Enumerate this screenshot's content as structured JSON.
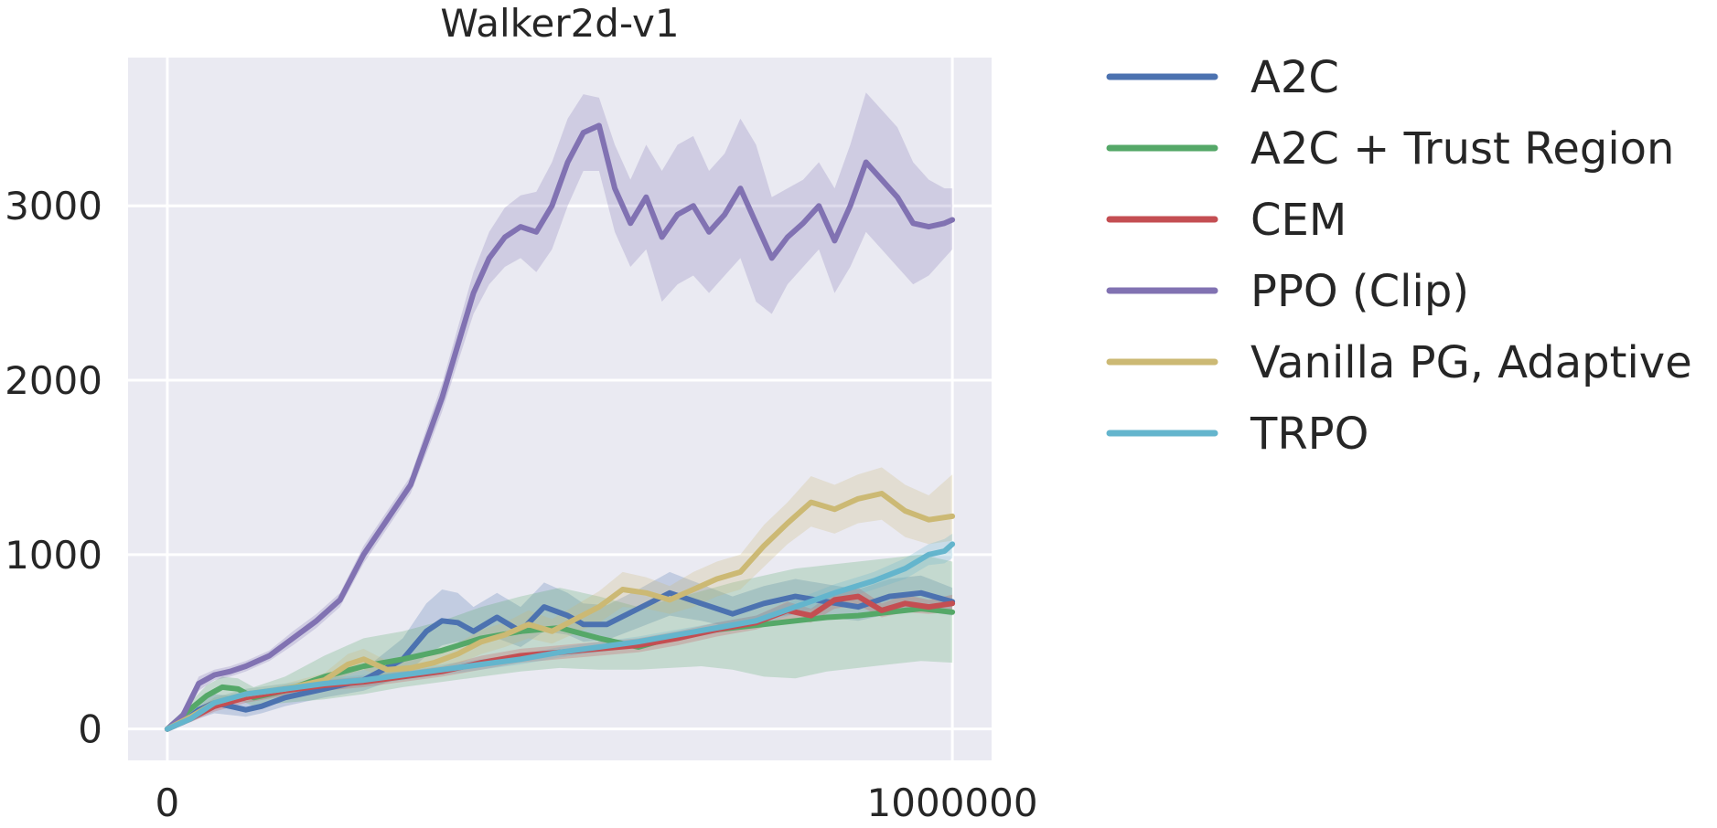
{
  "chart_data": {
    "type": "line",
    "title": "Walker2d-v1",
    "xlabel": "",
    "ylabel": "",
    "xlim": [
      -50000,
      1050000
    ],
    "ylim": [
      -180,
      3850
    ],
    "xticks": [
      0,
      1000000
    ],
    "xtick_labels": [
      "0",
      "1000000"
    ],
    "yticks": [
      0,
      1000,
      2000,
      3000
    ],
    "ytick_labels": [
      "0",
      "1000",
      "2000",
      "3000"
    ],
    "grid": true,
    "legend_position": "outside-right",
    "background_color": "#eaeaf2",
    "series": [
      {
        "name": "A2C",
        "color": "#4c72b0",
        "x": [
          0,
          20000,
          40000,
          60000,
          80000,
          100000,
          120000,
          150000,
          200000,
          250000,
          300000,
          330000,
          350000,
          370000,
          390000,
          420000,
          450000,
          480000,
          510000,
          530000,
          560000,
          600000,
          640000,
          680000,
          720000,
          760000,
          800000,
          840000,
          880000,
          920000,
          960000,
          1000000
        ],
        "y": [
          0,
          40,
          110,
          150,
          130,
          110,
          130,
          180,
          230,
          280,
          400,
          560,
          620,
          610,
          560,
          640,
          560,
          700,
          650,
          600,
          600,
          690,
          780,
          720,
          660,
          720,
          760,
          730,
          700,
          760,
          780,
          730
        ],
        "lower": [
          0,
          20,
          60,
          90,
          80,
          70,
          90,
          130,
          180,
          220,
          300,
          420,
          480,
          500,
          470,
          520,
          470,
          560,
          540,
          500,
          510,
          580,
          650,
          620,
          580,
          630,
          660,
          640,
          620,
          660,
          680,
          650
        ],
        "upper": [
          0,
          60,
          150,
          200,
          190,
          160,
          180,
          240,
          290,
          340,
          520,
          720,
          800,
          780,
          700,
          780,
          700,
          840,
          780,
          720,
          710,
          800,
          900,
          830,
          760,
          820,
          860,
          830,
          800,
          860,
          880,
          810
        ]
      },
      {
        "name": "A2C + Trust Region",
        "color": "#55a868",
        "x": [
          0,
          20000,
          50000,
          70000,
          90000,
          110000,
          150000,
          200000,
          250000,
          300000,
          350000,
          400000,
          450000,
          500000,
          550000,
          600000,
          640000,
          680000,
          720000,
          760000,
          800000,
          840000,
          880000,
          920000,
          960000,
          1000000
        ],
        "y": [
          0,
          80,
          190,
          240,
          230,
          180,
          220,
          300,
          360,
          400,
          450,
          520,
          560,
          580,
          520,
          470,
          520,
          560,
          580,
          600,
          620,
          640,
          650,
          670,
          690,
          670
        ],
        "lower": [
          0,
          50,
          130,
          170,
          170,
          130,
          150,
          170,
          200,
          240,
          270,
          300,
          330,
          350,
          340,
          340,
          350,
          360,
          340,
          300,
          290,
          330,
          350,
          370,
          390,
          380
        ],
        "upper": [
          0,
          110,
          250,
          300,
          290,
          240,
          300,
          420,
          520,
          560,
          620,
          700,
          760,
          810,
          760,
          700,
          740,
          790,
          840,
          880,
          920,
          940,
          960,
          980,
          1000,
          960
        ]
      },
      {
        "name": "CEM",
        "color": "#c44e52",
        "x": [
          0,
          30000,
          60000,
          100000,
          150000,
          200000,
          250000,
          300000,
          350000,
          400000,
          450000,
          500000,
          550000,
          600000,
          650000,
          700000,
          750000,
          790000,
          820000,
          850000,
          880000,
          910000,
          940000,
          970000,
          1000000
        ],
        "y": [
          0,
          60,
          130,
          180,
          220,
          250,
          270,
          300,
          330,
          380,
          420,
          440,
          460,
          480,
          520,
          570,
          610,
          680,
          650,
          740,
          760,
          680,
          720,
          700,
          720
        ],
        "lower": [
          0,
          40,
          100,
          150,
          190,
          220,
          240,
          270,
          300,
          340,
          380,
          400,
          420,
          440,
          480,
          530,
          570,
          630,
          610,
          690,
          710,
          640,
          670,
          660,
          670
        ],
        "upper": [
          0,
          80,
          160,
          210,
          250,
          280,
          300,
          330,
          360,
          420,
          460,
          480,
          500,
          520,
          560,
          610,
          650,
          730,
          690,
          790,
          810,
          720,
          770,
          740,
          770
        ]
      },
      {
        "name": "PPO (Clip)",
        "color": "#8172b2",
        "x": [
          0,
          20000,
          40000,
          60000,
          80000,
          100000,
          130000,
          160000,
          190000,
          220000,
          250000,
          280000,
          310000,
          330000,
          350000,
          370000,
          390000,
          410000,
          430000,
          450000,
          470000,
          490000,
          510000,
          530000,
          550000,
          570000,
          590000,
          610000,
          630000,
          650000,
          670000,
          690000,
          710000,
          730000,
          750000,
          770000,
          790000,
          810000,
          830000,
          850000,
          870000,
          890000,
          910000,
          930000,
          950000,
          970000,
          990000,
          1000000
        ],
        "y": [
          0,
          80,
          260,
          310,
          330,
          360,
          420,
          520,
          620,
          740,
          1000,
          1200,
          1400,
          1650,
          1900,
          2200,
          2500,
          2700,
          2820,
          2880,
          2850,
          3000,
          3250,
          3420,
          3460,
          3100,
          2900,
          3050,
          2820,
          2950,
          3000,
          2850,
          2950,
          3100,
          2900,
          2700,
          2820,
          2900,
          3000,
          2800,
          3000,
          3250,
          3150,
          3050,
          2900,
          2880,
          2900,
          2920
        ],
        "lower": [
          0,
          60,
          220,
          280,
          300,
          330,
          390,
          480,
          580,
          700,
          950,
          1150,
          1350,
          1580,
          1820,
          2100,
          2380,
          2550,
          2650,
          2700,
          2620,
          2750,
          3000,
          3200,
          3200,
          2850,
          2650,
          2750,
          2450,
          2550,
          2600,
          2500,
          2600,
          2700,
          2450,
          2380,
          2550,
          2650,
          2750,
          2500,
          2650,
          2850,
          2750,
          2650,
          2550,
          2600,
          2700,
          2750
        ],
        "upper": [
          0,
          100,
          300,
          340,
          360,
          390,
          450,
          560,
          660,
          780,
          1050,
          1250,
          1450,
          1720,
          1980,
          2300,
          2620,
          2850,
          2990,
          3060,
          3080,
          3250,
          3500,
          3640,
          3620,
          3350,
          3150,
          3350,
          3200,
          3350,
          3400,
          3200,
          3300,
          3500,
          3350,
          3050,
          3100,
          3150,
          3250,
          3100,
          3350,
          3650,
          3550,
          3450,
          3250,
          3150,
          3100,
          3100
        ]
      },
      {
        "name": "Vanilla PG, Adaptive",
        "color": "#ccb974",
        "x": [
          0,
          30000,
          60000,
          100000,
          150000,
          200000,
          230000,
          250000,
          280000,
          310000,
          340000,
          370000,
          400000,
          430000,
          460000,
          490000,
          520000,
          550000,
          580000,
          610000,
          640000,
          670000,
          700000,
          730000,
          760000,
          790000,
          820000,
          850000,
          880000,
          910000,
          940000,
          970000,
          1000000
        ],
        "y": [
          0,
          70,
          150,
          200,
          230,
          280,
          370,
          400,
          340,
          350,
          380,
          430,
          500,
          540,
          600,
          560,
          630,
          700,
          800,
          780,
          740,
          800,
          860,
          900,
          1050,
          1180,
          1300,
          1260,
          1320,
          1350,
          1250,
          1200,
          1220
        ],
        "lower": [
          0,
          50,
          120,
          170,
          200,
          240,
          310,
          340,
          290,
          300,
          330,
          370,
          430,
          470,
          520,
          490,
          550,
          610,
          700,
          690,
          660,
          700,
          760,
          800,
          930,
          1060,
          1160,
          1120,
          1180,
          1200,
          1100,
          1060,
          1080
        ],
        "upper": [
          0,
          90,
          180,
          230,
          260,
          320,
          430,
          460,
          390,
          400,
          430,
          490,
          570,
          610,
          680,
          630,
          710,
          790,
          900,
          870,
          820,
          900,
          960,
          1000,
          1170,
          1300,
          1450,
          1400,
          1460,
          1500,
          1400,
          1340,
          1460
        ]
      },
      {
        "name": "TRPO",
        "color": "#64b5cd",
        "x": [
          0,
          30000,
          60000,
          100000,
          150000,
          200000,
          250000,
          300000,
          350000,
          400000,
          450000,
          500000,
          550000,
          600000,
          650000,
          700000,
          750000,
          800000,
          850000,
          900000,
          940000,
          970000,
          990000,
          1000000
        ],
        "y": [
          0,
          60,
          150,
          200,
          230,
          260,
          280,
          310,
          340,
          370,
          400,
          440,
          470,
          500,
          540,
          580,
          620,
          700,
          780,
          850,
          920,
          1000,
          1020,
          1060
        ],
        "lower": [
          0,
          40,
          120,
          170,
          200,
          230,
          250,
          280,
          310,
          340,
          370,
          410,
          440,
          470,
          510,
          550,
          590,
          660,
          730,
          800,
          860,
          940,
          950,
          980
        ],
        "upper": [
          0,
          80,
          180,
          230,
          260,
          290,
          310,
          340,
          370,
          400,
          430,
          470,
          500,
          530,
          570,
          610,
          650,
          740,
          830,
          900,
          980,
          1060,
          1090,
          1120
        ]
      }
    ]
  }
}
